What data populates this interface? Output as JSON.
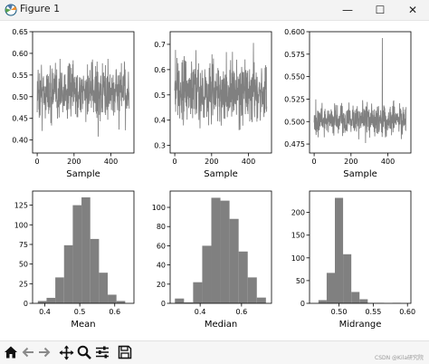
{
  "window": {
    "title": "Figure 1",
    "minimize_glyph": "—",
    "maximize_glyph": "☐",
    "close_glyph": "✕",
    "icon": "matplotlib-icon"
  },
  "toolbar": {
    "items": [
      {
        "name": "home-icon"
      },
      {
        "name": "back-arrow-icon"
      },
      {
        "name": "forward-arrow-icon"
      },
      {
        "name": "pan-icon"
      },
      {
        "name": "zoom-icon"
      },
      {
        "name": "configure-subplots-icon"
      },
      {
        "name": "save-icon"
      }
    ]
  },
  "watermark": "CSDN @Kila研究院",
  "colors": {
    "series": "#808080",
    "axis": "#000000",
    "background": "#ffffff"
  },
  "chart_data": [
    {
      "type": "line",
      "xlabel": "Sample",
      "title": "",
      "xlim": [
        -25,
        525
      ],
      "ylim": [
        0.37,
        0.65
      ],
      "xticks": [
        0,
        200,
        400
      ],
      "yticks": [
        0.4,
        0.45,
        0.5,
        0.55,
        0.6,
        0.65
      ],
      "ytick_labels": [
        "0.40",
        "0.45",
        "0.50",
        "0.55",
        "0.60",
        "0.65"
      ],
      "n_points": 500,
      "center": 0.51,
      "spread": 0.045,
      "min": 0.38,
      "max": 0.62
    },
    {
      "type": "line",
      "xlabel": "Sample",
      "title": "",
      "xlim": [
        -25,
        525
      ],
      "ylim": [
        0.27,
        0.75
      ],
      "xticks": [
        0,
        200,
        400
      ],
      "yticks": [
        0.3,
        0.4,
        0.5,
        0.6,
        0.7
      ],
      "ytick_labels": [
        "0.3",
        "0.4",
        "0.5",
        "0.6",
        "0.7"
      ],
      "n_points": 500,
      "center": 0.51,
      "spread": 0.085,
      "min": 0.29,
      "max": 0.72
    },
    {
      "type": "line",
      "xlabel": "Sample",
      "title": "",
      "xlim": [
        -25,
        525
      ],
      "ylim": [
        0.465,
        0.6
      ],
      "xticks": [
        0,
        200,
        400
      ],
      "yticks": [
        0.475,
        0.5,
        0.525,
        0.55,
        0.575,
        0.6
      ],
      "ytick_labels": [
        "0.475",
        "0.500",
        "0.525",
        "0.550",
        "0.575",
        "0.600"
      ],
      "n_points": 500,
      "center": 0.502,
      "spread": 0.012,
      "min": 0.47,
      "max": 0.593,
      "spike": {
        "x": 370,
        "y": 0.593
      }
    },
    {
      "type": "bar",
      "xlabel": "Mean",
      "title": "",
      "xlim": [
        0.365,
        0.655
      ],
      "ylim": [
        0,
        143
      ],
      "xticks": [
        0.4,
        0.5,
        0.6
      ],
      "xtick_labels": [
        "0.4",
        "0.5",
        "0.6"
      ],
      "yticks": [
        0,
        25,
        50,
        75,
        100,
        125
      ],
      "bin_edges": [
        0.38,
        0.405,
        0.43,
        0.455,
        0.48,
        0.505,
        0.53,
        0.555,
        0.58,
        0.605,
        0.63
      ],
      "counts": [
        3,
        7,
        33,
        74,
        125,
        135,
        82,
        39,
        11,
        3
      ]
    },
    {
      "type": "bar",
      "xlabel": "Median",
      "title": "",
      "xlim": [
        0.255,
        0.745
      ],
      "ylim": [
        0,
        117
      ],
      "xticks": [
        0.4,
        0.6
      ],
      "xtick_labels": [
        "0.4",
        "0.6"
      ],
      "yticks": [
        0,
        20,
        40,
        60,
        80,
        100
      ],
      "bin_edges": [
        0.278,
        0.322,
        0.366,
        0.41,
        0.454,
        0.498,
        0.542,
        0.586,
        0.63,
        0.674,
        0.718
      ],
      "counts": [
        5,
        1,
        22,
        60,
        110,
        107,
        88,
        54,
        27,
        6
      ]
    },
    {
      "type": "bar",
      "xlabel": "Midrange",
      "title": "",
      "xlim": [
        0.457,
        0.605
      ],
      "ylim": [
        0,
        247
      ],
      "xticks": [
        0.5,
        0.55,
        0.6
      ],
      "xtick_labels": [
        "0.50",
        "0.55",
        "0.60"
      ],
      "yticks": [
        0,
        50,
        100,
        150,
        200
      ],
      "bin_edges": [
        0.47,
        0.482,
        0.494,
        0.506,
        0.518,
        0.53,
        0.542,
        0.554,
        0.566,
        0.578,
        0.59
      ],
      "counts": [
        7,
        67,
        232,
        108,
        25,
        9,
        1,
        1,
        0,
        1
      ]
    }
  ]
}
